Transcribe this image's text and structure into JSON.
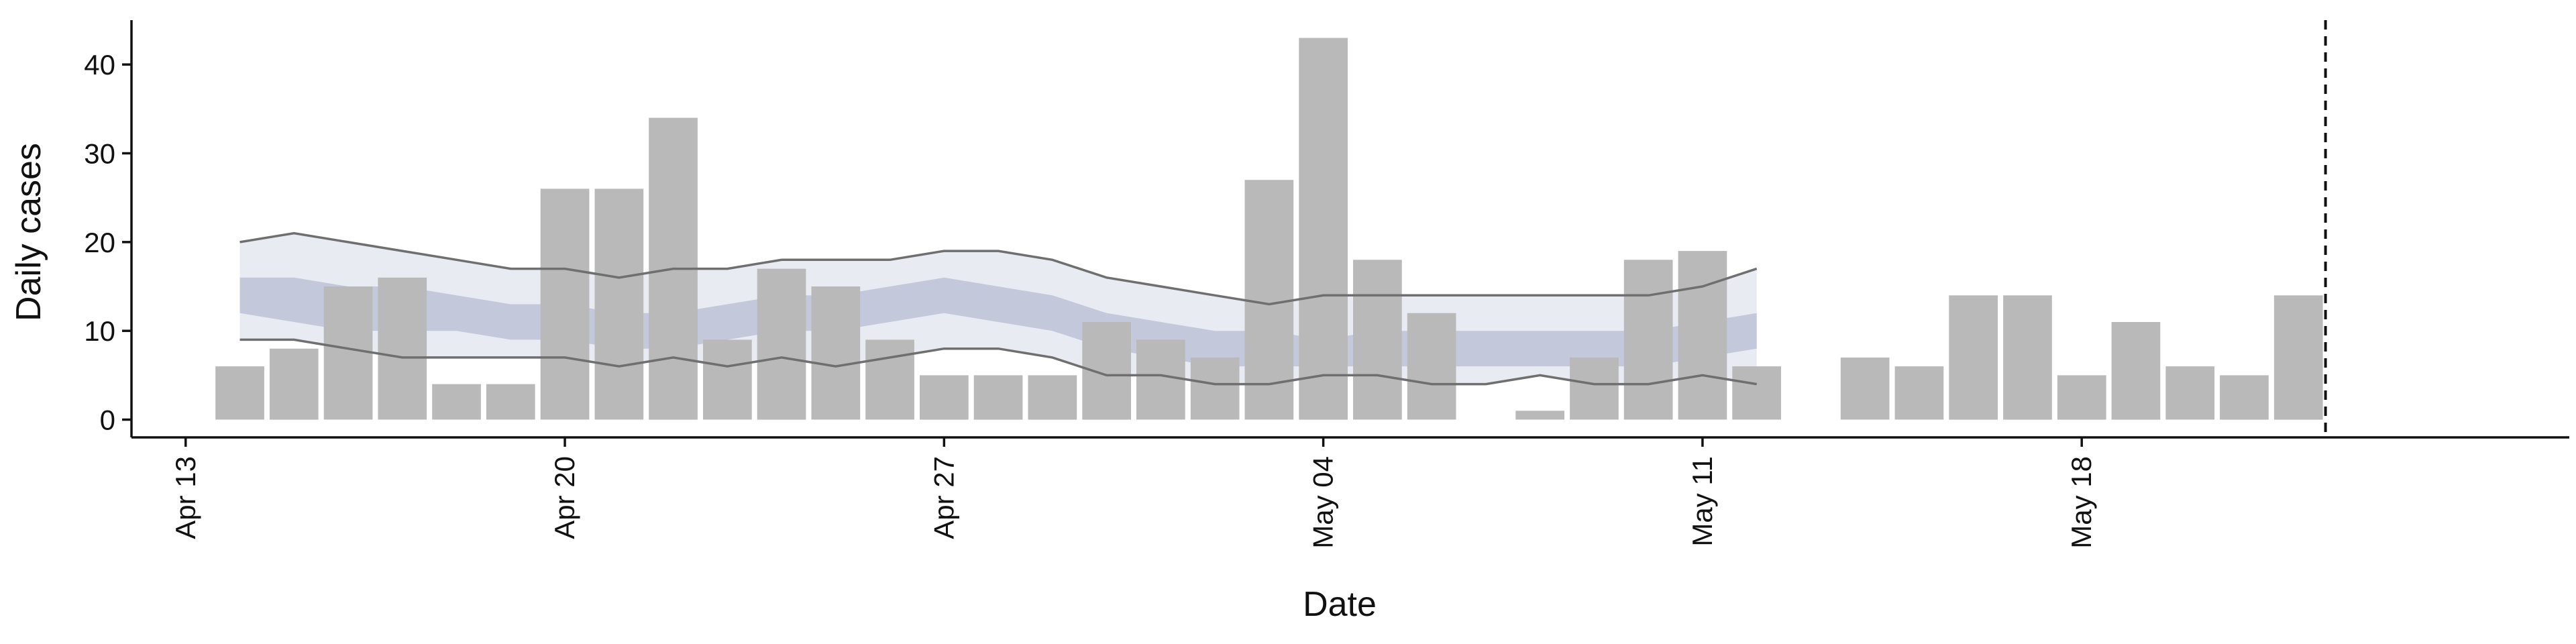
{
  "chart_data": {
    "type": "bar",
    "xlabel": "Date",
    "ylabel": "Daily cases",
    "xlim": [
      "2020-04-12",
      "2020-05-27"
    ],
    "ylim": [
      -2,
      45
    ],
    "yticks": [
      0,
      10,
      20,
      30,
      40
    ],
    "xticks": [
      {
        "date": "2020-04-13",
        "label": "Apr 13"
      },
      {
        "date": "2020-04-20",
        "label": "Apr 20"
      },
      {
        "date": "2020-04-27",
        "label": "Apr 27"
      },
      {
        "date": "2020-05-04",
        "label": "May 04"
      },
      {
        "date": "2020-05-11",
        "label": "May 11"
      },
      {
        "date": "2020-05-18",
        "label": "May 18"
      }
    ],
    "bars": [
      {
        "date": "2020-04-14",
        "value": 6
      },
      {
        "date": "2020-04-15",
        "value": 8
      },
      {
        "date": "2020-04-16",
        "value": 15
      },
      {
        "date": "2020-04-17",
        "value": 16
      },
      {
        "date": "2020-04-18",
        "value": 4
      },
      {
        "date": "2020-04-19",
        "value": 4
      },
      {
        "date": "2020-04-20",
        "value": 26
      },
      {
        "date": "2020-04-21",
        "value": 26
      },
      {
        "date": "2020-04-22",
        "value": 34
      },
      {
        "date": "2020-04-23",
        "value": 9
      },
      {
        "date": "2020-04-24",
        "value": 17
      },
      {
        "date": "2020-04-25",
        "value": 15
      },
      {
        "date": "2020-04-26",
        "value": 9
      },
      {
        "date": "2020-04-27",
        "value": 5
      },
      {
        "date": "2020-04-28",
        "value": 5
      },
      {
        "date": "2020-04-29",
        "value": 5
      },
      {
        "date": "2020-04-30",
        "value": 11
      },
      {
        "date": "2020-05-01",
        "value": 9
      },
      {
        "date": "2020-05-02",
        "value": 7
      },
      {
        "date": "2020-05-03",
        "value": 27
      },
      {
        "date": "2020-05-04",
        "value": 43
      },
      {
        "date": "2020-05-05",
        "value": 18
      },
      {
        "date": "2020-05-06",
        "value": 12
      },
      {
        "date": "2020-05-08",
        "value": 1
      },
      {
        "date": "2020-05-09",
        "value": 7
      },
      {
        "date": "2020-05-10",
        "value": 18
      },
      {
        "date": "2020-05-11",
        "value": 19
      },
      {
        "date": "2020-05-12",
        "value": 6
      },
      {
        "date": "2020-05-14",
        "value": 7
      },
      {
        "date": "2020-05-15",
        "value": 6
      },
      {
        "date": "2020-05-16",
        "value": 14
      },
      {
        "date": "2020-05-17",
        "value": 14
      },
      {
        "date": "2020-05-18",
        "value": 5
      },
      {
        "date": "2020-05-19",
        "value": 11
      },
      {
        "date": "2020-05-20",
        "value": 6
      },
      {
        "date": "2020-05-21",
        "value": 5
      },
      {
        "date": "2020-05-22",
        "value": 14
      }
    ],
    "ribbon": {
      "dates": [
        "2020-04-14",
        "2020-04-15",
        "2020-04-16",
        "2020-04-17",
        "2020-04-18",
        "2020-04-19",
        "2020-04-20",
        "2020-04-21",
        "2020-04-22",
        "2020-04-23",
        "2020-04-24",
        "2020-04-25",
        "2020-04-26",
        "2020-04-27",
        "2020-04-28",
        "2020-04-29",
        "2020-04-30",
        "2020-05-01",
        "2020-05-02",
        "2020-05-03",
        "2020-05-04",
        "2020-05-05",
        "2020-05-06",
        "2020-05-07",
        "2020-05-08",
        "2020-05-09",
        "2020-05-10",
        "2020-05-11",
        "2020-05-12"
      ],
      "outer_lower": [
        9,
        9,
        8,
        7,
        7,
        7,
        7,
        6,
        7,
        6,
        7,
        6,
        7,
        8,
        8,
        7,
        5,
        5,
        4,
        4,
        5,
        5,
        4,
        4,
        5,
        4,
        4,
        5,
        4
      ],
      "outer_upper": [
        20,
        21,
        20,
        19,
        18,
        17,
        17,
        16,
        17,
        17,
        18,
        18,
        18,
        19,
        19,
        18,
        16,
        15,
        14,
        13,
        14,
        14,
        14,
        14,
        14,
        14,
        14,
        15,
        17
      ],
      "inner_lower": [
        12,
        11,
        10,
        10,
        10,
        9,
        9,
        8,
        8,
        9,
        10,
        10,
        11,
        12,
        11,
        10,
        8,
        7,
        6,
        6,
        6,
        6,
        6,
        6,
        6,
        6,
        6,
        7,
        8
      ],
      "inner_upper": [
        16,
        16,
        15,
        15,
        14,
        13,
        13,
        12,
        12,
        13,
        14,
        14,
        15,
        16,
        15,
        14,
        12,
        11,
        10,
        10,
        9,
        10,
        10,
        10,
        10,
        10,
        10,
        11,
        12
      ]
    },
    "reference_line_date": "2020-05-22T12:00"
  }
}
